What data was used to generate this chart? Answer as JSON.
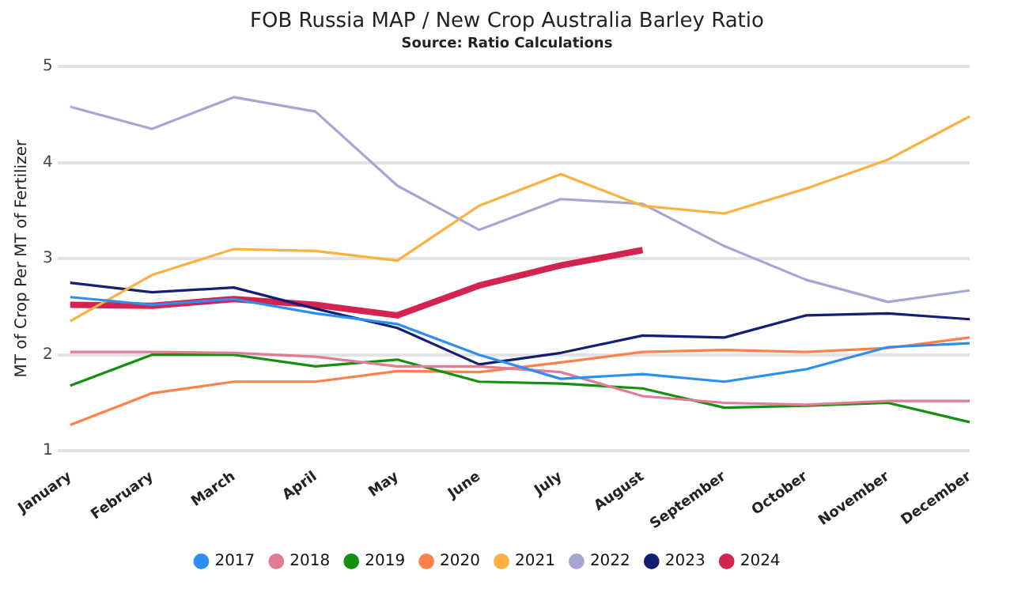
{
  "chart_data": {
    "type": "line",
    "title": "FOB Russia MAP / New Crop Australia Barley Ratio",
    "subtitle": "Source: Ratio Calculations",
    "ylabel": "MT of Crop Per MT of Fertilizer",
    "categories": [
      "January",
      "February",
      "March",
      "April",
      "May",
      "June",
      "July",
      "August",
      "September",
      "October",
      "November",
      "December"
    ],
    "series": [
      {
        "name": "2017",
        "color": "#2b8ef3",
        "values": [
          2.6,
          2.52,
          2.58,
          2.43,
          2.32,
          2.0,
          1.75,
          1.8,
          1.72,
          1.85,
          2.08,
          2.12
        ]
      },
      {
        "name": "2018",
        "color": "#e07c94",
        "values": [
          2.03,
          2.03,
          2.02,
          1.98,
          1.88,
          1.88,
          1.82,
          1.57,
          1.5,
          1.48,
          1.52,
          1.52
        ]
      },
      {
        "name": "2019",
        "color": "#13900f",
        "values": [
          1.68,
          2.0,
          2.0,
          1.88,
          1.95,
          1.72,
          1.7,
          1.65,
          1.45,
          1.47,
          1.5,
          1.3
        ]
      },
      {
        "name": "2020",
        "color": "#ff8048",
        "values": [
          1.27,
          1.6,
          1.72,
          1.72,
          1.83,
          1.82,
          1.92,
          2.03,
          2.05,
          2.03,
          2.07,
          2.18
        ]
      },
      {
        "name": "2021",
        "color": "#fbb040",
        "values": [
          2.35,
          2.83,
          3.1,
          3.08,
          2.98,
          3.55,
          3.88,
          3.55,
          3.47,
          3.73,
          4.03,
          4.48
        ]
      },
      {
        "name": "2022",
        "color": "#a6a6d2",
        "values": [
          4.58,
          4.35,
          4.68,
          4.53,
          3.76,
          3.3,
          3.62,
          3.57,
          3.13,
          2.78,
          2.55,
          2.67
        ]
      },
      {
        "name": "2023",
        "color": "#121f72",
        "values": [
          2.75,
          2.65,
          2.7,
          2.48,
          2.28,
          1.9,
          2.02,
          2.2,
          2.18,
          2.41,
          2.43,
          2.37
        ]
      },
      {
        "name": "2024",
        "color": "#d3234f",
        "values": [
          2.52,
          2.51,
          2.58,
          2.52,
          2.41,
          2.72,
          2.93,
          3.09,
          null,
          null,
          null,
          null
        ]
      }
    ],
    "ylim": [
      1,
      5
    ],
    "yticks": [
      1,
      2,
      3,
      4,
      5
    ],
    "grid": "y",
    "legend": "bottom",
    "marker": "none",
    "line_style": "solid"
  }
}
